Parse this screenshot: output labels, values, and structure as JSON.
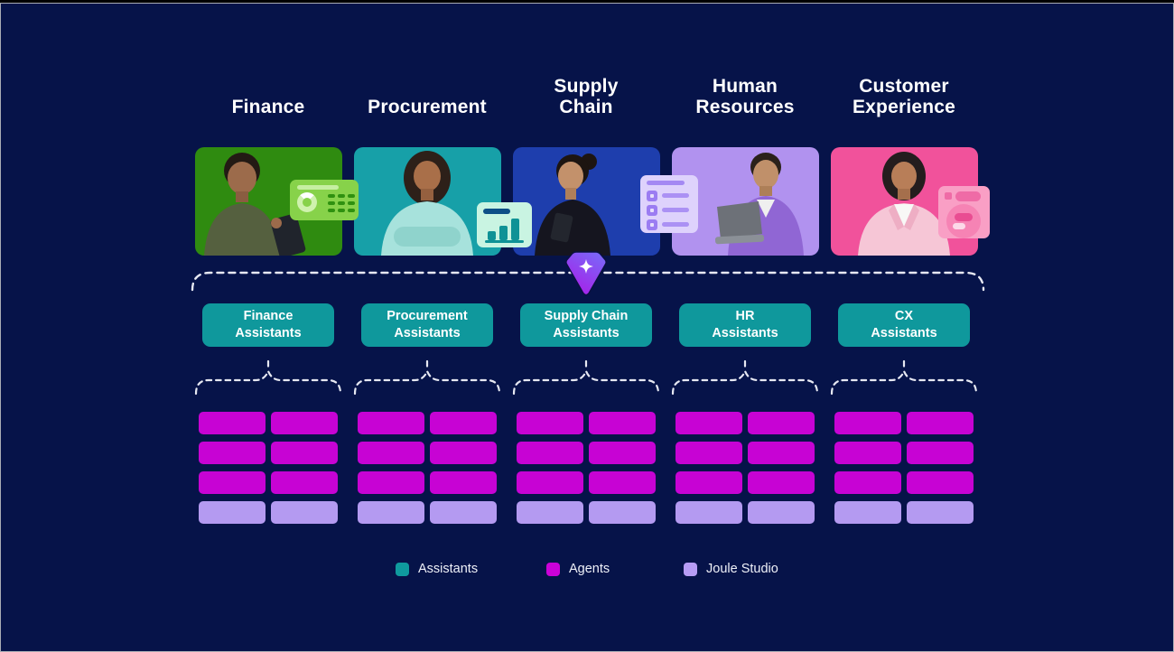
{
  "page": {
    "background_color": "#061349",
    "frame_border_color": "#a9adb5"
  },
  "columns": [
    {
      "header": "Finance",
      "card_color": "#2f8b10",
      "assistant_line1": "Finance",
      "assistant_line2": "Assistants"
    },
    {
      "header": "Procurement",
      "card_color": "#17a0a8",
      "assistant_line1": "Procurement",
      "assistant_line2": "Assistants"
    },
    {
      "header": "Supply Chain",
      "card_color": "#1e3ead",
      "assistant_line1": "Supply Chain",
      "assistant_line2": "Assistants"
    },
    {
      "header": "Human Resources",
      "card_color": "#b192ef",
      "assistant_line1": "HR",
      "assistant_line2": "Assistants"
    },
    {
      "header": "Customer Experience",
      "card_color": "#f1529b",
      "assistant_line1": "CX",
      "assistant_line2": "Assistants"
    }
  ],
  "assistants_row": {
    "button_color": "#0f989c"
  },
  "joule": {
    "icon": "joule-gem-icon",
    "gradient_top": "#7a68f8",
    "gradient_bottom": "#a91de8",
    "sparkle_color": "#ffffff"
  },
  "connector": {
    "dash_color": "#e6e8f2"
  },
  "grid": {
    "agent_rows": 3,
    "studio_rows": 1,
    "columns_per_group": 2,
    "agent_color": "#c703d4",
    "studio_color": "#b49af1"
  },
  "legend": {
    "items": [
      {
        "label": "Assistants",
        "color": "#0f9a9e"
      },
      {
        "label": "Agents",
        "color": "#cb02d8"
      },
      {
        "label": "Joule Studio",
        "color": "#b79df5"
      }
    ]
  }
}
